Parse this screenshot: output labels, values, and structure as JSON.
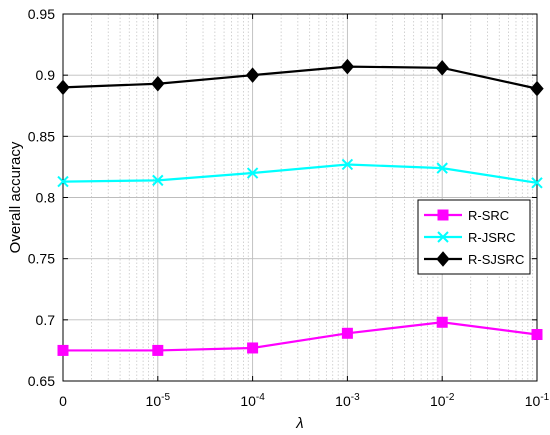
{
  "chart_data": {
    "type": "line",
    "title": "",
    "xlabel": "λ",
    "ylabel": "Overall accuracy",
    "categories": [
      "0",
      "1e-5",
      "1e-4",
      "1e-3",
      "1e-2",
      "1e-1"
    ],
    "x_tick_labels": [
      {
        "base": "0",
        "exp": ""
      },
      {
        "base": "10",
        "exp": "-5"
      },
      {
        "base": "10",
        "exp": "-4"
      },
      {
        "base": "10",
        "exp": "-3"
      },
      {
        "base": "10",
        "exp": "-2"
      },
      {
        "base": "10",
        "exp": "-1"
      }
    ],
    "ylim": [
      0.65,
      0.95
    ],
    "y_ticks": [
      "0.65",
      "0.7",
      "0.75",
      "0.8",
      "0.85",
      "0.9",
      "0.95"
    ],
    "grid": true,
    "log_minor_grid": true,
    "legend_position": "right",
    "series": [
      {
        "name": "R-SRC",
        "color": "#ff00ff",
        "marker": "square",
        "values": [
          0.675,
          0.675,
          0.677,
          0.689,
          0.698,
          0.688
        ]
      },
      {
        "name": "R-JSRC",
        "color": "#00ffff",
        "marker": "x",
        "values": [
          0.813,
          0.814,
          0.82,
          0.827,
          0.824,
          0.812
        ]
      },
      {
        "name": "R-SJSRC",
        "color": "#000000",
        "marker": "diamond",
        "values": [
          0.89,
          0.893,
          0.9,
          0.907,
          0.906,
          0.889
        ]
      }
    ]
  }
}
